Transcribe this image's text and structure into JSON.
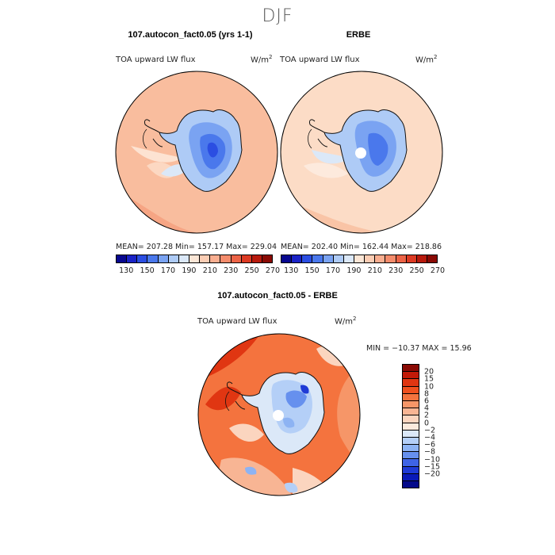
{
  "title": "DJF",
  "panels": {
    "left": {
      "title": "107.autocon_fact0.05 (yrs 1-1)",
      "variable": "TOA upward LW flux",
      "units": "W/m",
      "units_sup": "2",
      "stats": "MEAN= 207.28   Min= 157.17   Max= 229.04"
    },
    "right": {
      "title": "ERBE",
      "variable": "TOA upward LW flux",
      "units": "W/m",
      "units_sup": "2",
      "stats": "MEAN= 202.40   Min= 162.44   Max= 218.86"
    },
    "diff": {
      "title": "107.autocon_fact0.05 - ERBE",
      "variable": "TOA upward LW flux",
      "units": "W/m",
      "units_sup": "2",
      "stats": "MIN = −10.37 MAX =  15.96"
    }
  },
  "colorbar_top": {
    "labels": [
      "130",
      "150",
      "170",
      "190",
      "210",
      "230",
      "250",
      "270"
    ],
    "colors": [
      "#08088f",
      "#1a23c6",
      "#2b4ee2",
      "#4a78ec",
      "#7aa3f2",
      "#aecbf6",
      "#dbe8f8",
      "#fbe6d6",
      "#fbcdb4",
      "#f9ae90",
      "#f48c6c",
      "#ec6346",
      "#dc3a23",
      "#b81a0c",
      "#8a0a04"
    ]
  },
  "colorbar_diff": {
    "labels": [
      "20",
      "15",
      "10",
      "8",
      "6",
      "4",
      "2",
      "0",
      "−2",
      "−4",
      "−6",
      "−8",
      "−10",
      "−15",
      "−20"
    ],
    "colors": [
      "#8a0a04",
      "#c21a08",
      "#e03612",
      "#f0501e",
      "#f4733e",
      "#f69668",
      "#f8b594",
      "#fbd5bf",
      "#fbeadd",
      "#dbe8f8",
      "#b4cff7",
      "#8db3f3",
      "#6690ee",
      "#3e64e6",
      "#1f3bd6",
      "#0a1ab8",
      "#040a8a"
    ]
  },
  "colors": {
    "ocean_left": "#f9bd9e",
    "ocean_right": "#fcdcc6",
    "ocean_diff": "#f47a4e",
    "land_border": "#111111"
  }
}
